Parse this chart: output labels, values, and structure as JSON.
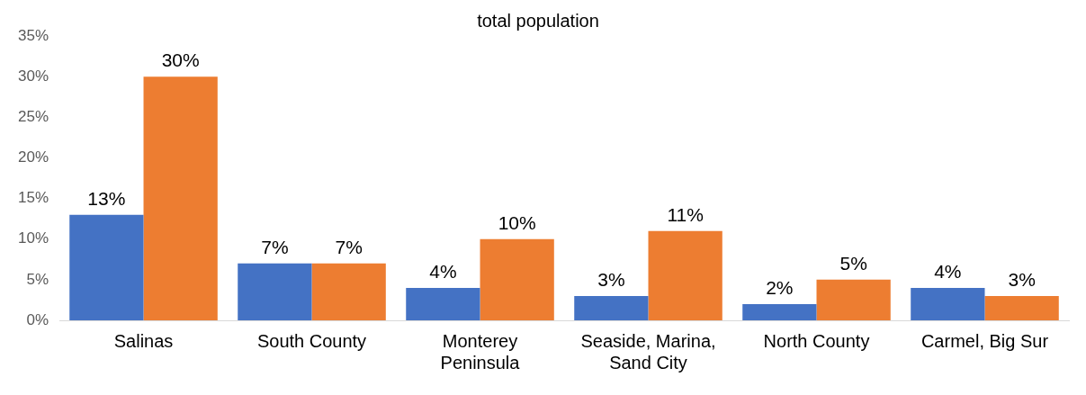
{
  "chart_data": {
    "type": "bar",
    "title": "total population",
    "categories": [
      "Salinas",
      "South County",
      "Monterey Peninsula",
      "Seaside, Marina, Sand City",
      "North County",
      "Carmel, Big Sur"
    ],
    "series": [
      {
        "color": "#4472c4",
        "values": [
          13,
          7,
          4,
          3,
          2,
          4
        ],
        "value_labels": [
          "13%",
          "7%",
          "4%",
          "3%",
          "2%",
          "4%"
        ]
      },
      {
        "color": "#ed7d31",
        "values": [
          30,
          7,
          10,
          11,
          5,
          3
        ],
        "value_labels": [
          "30%",
          "7%",
          "10%",
          "11%",
          "5%",
          "3%"
        ]
      }
    ],
    "ylim": [
      0,
      35
    ],
    "yticks": [
      {
        "value": 0,
        "label": "0%"
      },
      {
        "value": 5,
        "label": "5%"
      },
      {
        "value": 10,
        "label": "10%"
      },
      {
        "value": 15,
        "label": "15%"
      },
      {
        "value": 20,
        "label": "20%"
      },
      {
        "value": 25,
        "label": "25%"
      },
      {
        "value": 30,
        "label": "30%"
      },
      {
        "value": 35,
        "label": "35%"
      }
    ],
    "grid": false,
    "legend": false
  }
}
